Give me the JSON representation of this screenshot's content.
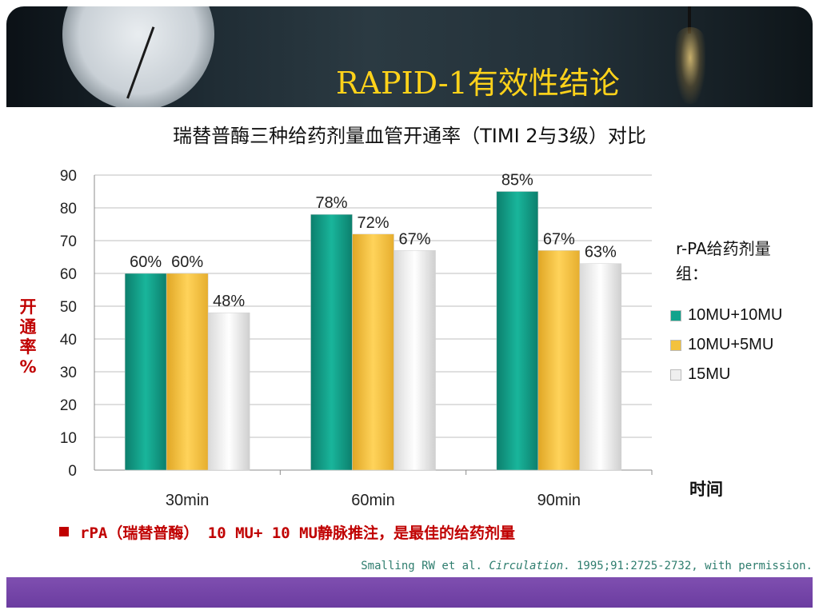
{
  "slide": {
    "title": "RAPID-1有效性结论",
    "subtitle": "瑞替普酶三种给药剂量血管开通率（TIMI 2与3级）对比",
    "note": "rPA（瑞替普酶） 10 MU+ 10 MU静脉推注，是最佳的给药剂量",
    "citation_pre": "Smalling RW et al. ",
    "citation_journal": "Circulation",
    "citation_post": ". 1995;91:2725-2732, with permission."
  },
  "colors": {
    "title": "#ffd21a",
    "series_teal": "#12a38c",
    "series_gold": "#f3c23e",
    "series_white": "#efefef",
    "note_red": "#c00000",
    "footer": "#6b3ca0"
  },
  "chart_data": {
    "type": "bar",
    "categories": [
      "30min",
      "60min",
      "90min"
    ],
    "series": [
      {
        "name": "10MU+10MU",
        "values": [
          60,
          78,
          85
        ],
        "labels": [
          "60%",
          "78%",
          "85%"
        ],
        "color": "#12a38c"
      },
      {
        "name": "10MU+5MU",
        "values": [
          60,
          72,
          67
        ],
        "labels": [
          "60%",
          "72%",
          "67%"
        ],
        "color": "#f3c23e"
      },
      {
        "name": "15MU",
        "values": [
          48,
          67,
          63
        ],
        "labels": [
          "48%",
          "67%",
          "63%"
        ],
        "color": "#efefef"
      }
    ],
    "ylim": [
      0,
      90
    ],
    "yticks": [
      "0",
      "10",
      "20",
      "30",
      "40",
      "50",
      "60",
      "70",
      "80",
      "90"
    ],
    "ylabel": "开\n通\n率\n%",
    "xlabel": "时间",
    "legend_title": "r-PA给药剂量组：",
    "legend_position": "right",
    "grid": true
  }
}
